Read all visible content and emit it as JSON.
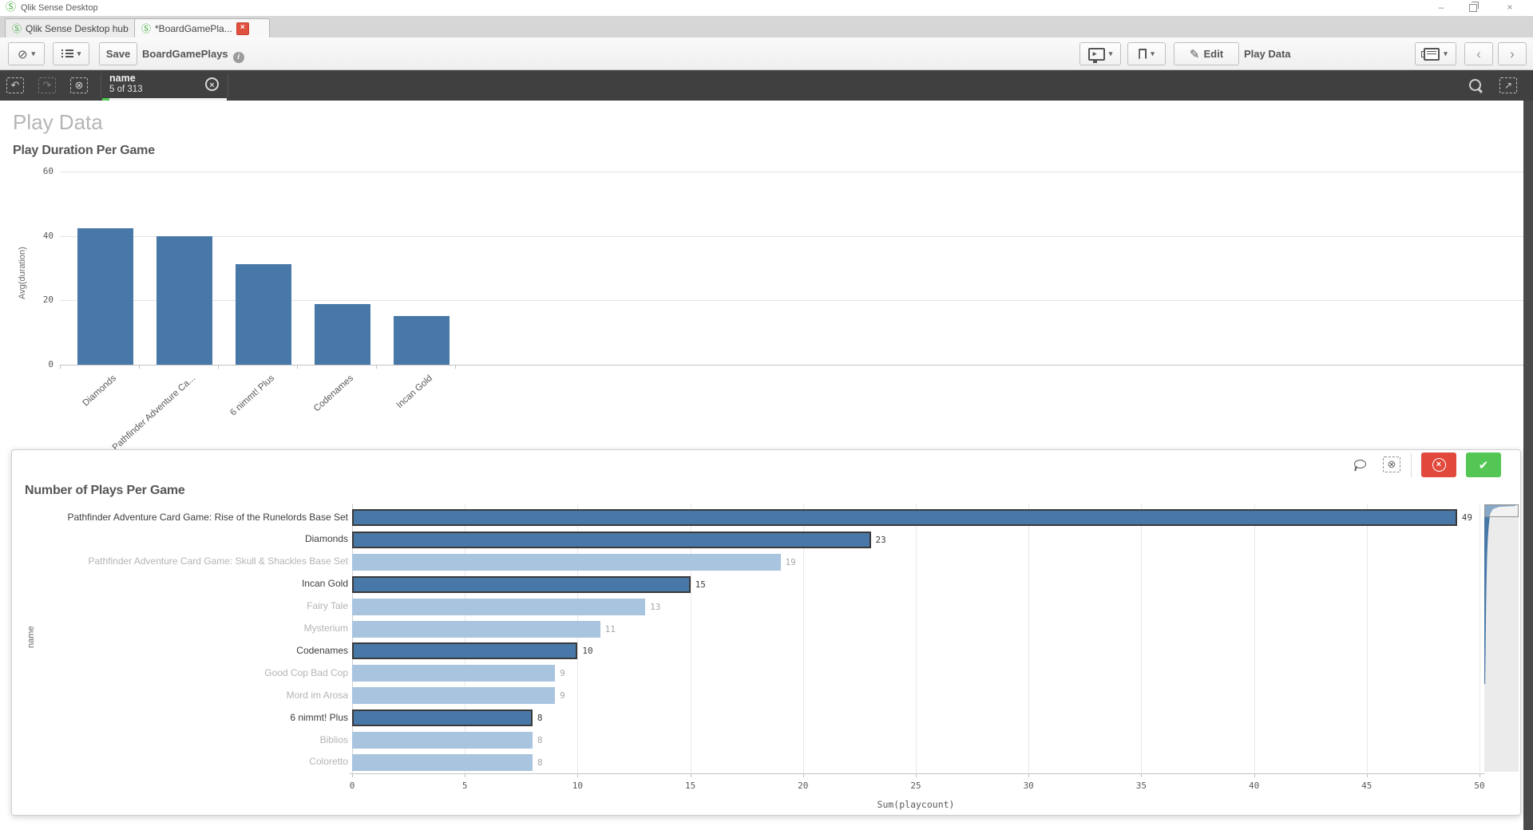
{
  "window": {
    "title": "Qlik Sense Desktop"
  },
  "tabs": [
    {
      "label": "Qlik Sense Desktop hub",
      "active": false
    },
    {
      "label": "*BoardGamePla...",
      "active": true,
      "closable": true
    }
  ],
  "toolbar": {
    "save": "Save",
    "app_name": "BoardGamePlays",
    "edit": "Edit",
    "current_sheet": "Play Data"
  },
  "selection_bar": {
    "field_name": "name",
    "selection_status": "5 of 313"
  },
  "sheet_title": "Play Data",
  "icons": {
    "qlik_logo": "Ⓢ",
    "compass": "⊘",
    "caret": "▾",
    "info": "i",
    "pencil": "✎",
    "monitor_play": "▸",
    "chevron_left": "‹",
    "chevron_right": "›",
    "undo": "↶",
    "redo": "↷",
    "clear_x": "⊗",
    "close_x": "×",
    "arrow_ne": "↗",
    "check": "✔",
    "minimize": "–"
  },
  "colors": {
    "bar_blue": "#4878a8",
    "bar_blue_dim": "#a9c4de",
    "selected_border": "#3a3a3a",
    "label_dark": "#3d3d3d",
    "label_dim": "#b4b4b4",
    "value_dark": "#3d3d3d",
    "value_dim": "#a6a6a6",
    "confirm_green": "#53c653",
    "cancel_red": "#e2493d",
    "selection_green": "#52cc52"
  },
  "chart_data": [
    {
      "type": "bar",
      "title": "Play Duration Per Game",
      "xlabel": "",
      "ylabel": "Avg(duration)",
      "ylim": [
        0,
        60
      ],
      "yticks": [
        0,
        20,
        40,
        60
      ],
      "grid": true,
      "categories": [
        "Diamonds",
        "Pathfinder Adventure Ca...",
        "6 nimmt! Plus",
        "Codenames",
        "Incan Gold"
      ],
      "values": [
        42.5,
        39.8,
        31.2,
        18.8,
        15.2
      ]
    },
    {
      "type": "bar",
      "orientation": "horizontal",
      "title": "Number of Plays Per Game",
      "xlabel": "Sum(playcount)",
      "ylabel": "name",
      "xlim": [
        0,
        52
      ],
      "xticks": [
        0,
        5,
        10,
        15,
        20,
        25,
        30,
        35,
        40,
        45,
        50
      ],
      "grid": true,
      "legend": false,
      "categories": [
        "Pathfinder Adventure Card Game: Rise of the Runelords  Base Set",
        "Diamonds",
        "Pathfinder Adventure Card Game: Skull & Shackles  Base Set",
        "Incan Gold",
        "Fairy Tale",
        "Mysterium",
        "Codenames",
        "Good Cop Bad Cop",
        "Mord im Arosa",
        "6 nimmt! Plus",
        "Biblios",
        "Coloretto"
      ],
      "values": [
        49,
        23,
        19,
        15,
        13,
        11,
        10,
        9,
        9,
        8,
        8,
        8
      ],
      "selected": [
        true,
        true,
        false,
        true,
        false,
        false,
        true,
        false,
        false,
        true,
        false,
        false
      ]
    }
  ]
}
